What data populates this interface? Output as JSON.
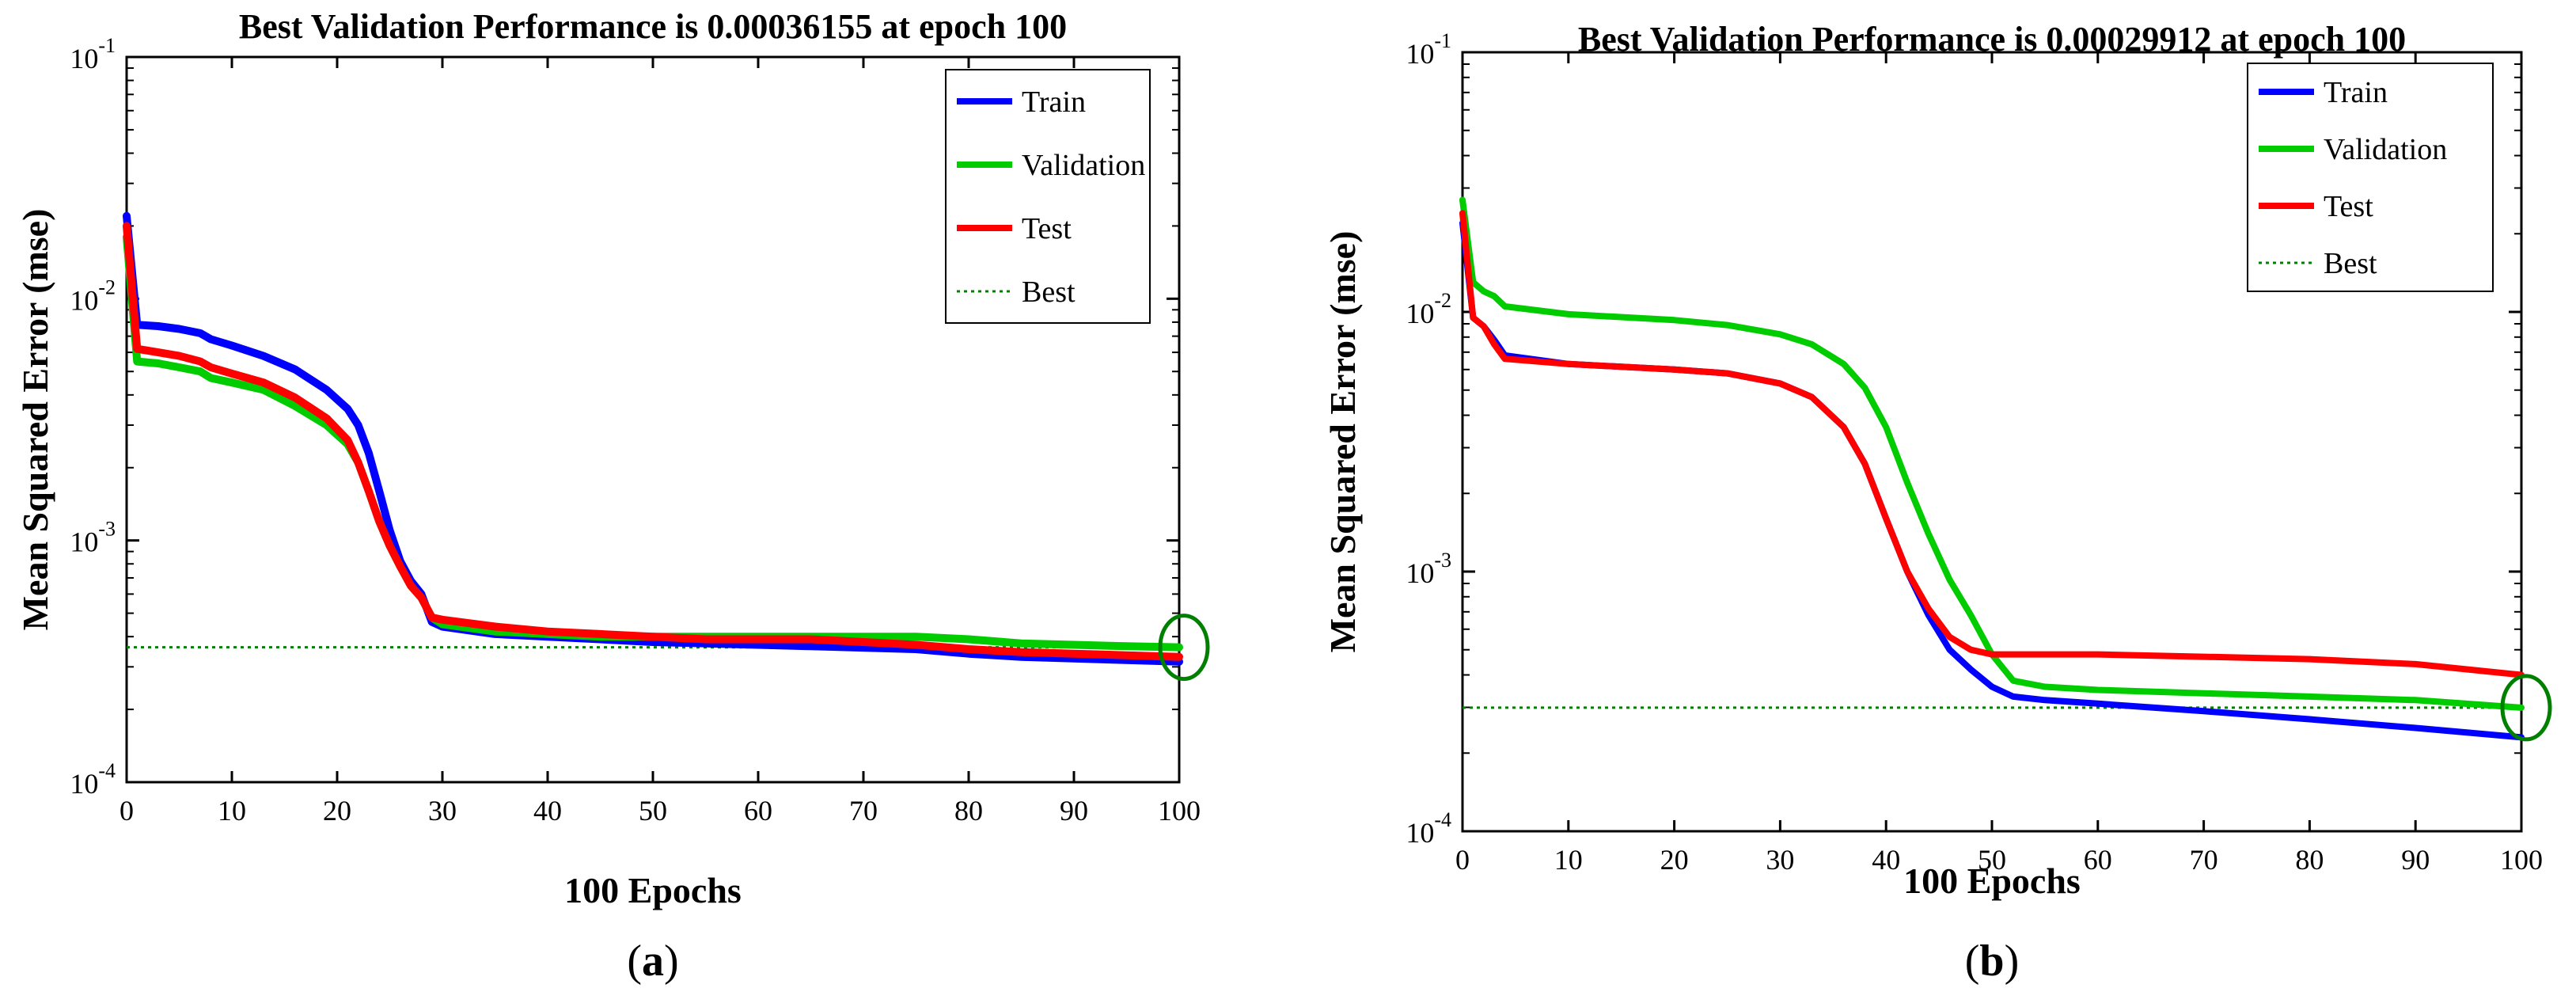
{
  "colors": {
    "train": "#0000ff",
    "validation": "#00cc00",
    "test": "#ff0000",
    "best": "#008000",
    "axis": "#000000"
  },
  "chart_data": [
    {
      "type": "line",
      "panel_label_prefix": "(",
      "panel_label_letter": "a",
      "panel_label_suffix": ")",
      "title": "Best Validation Performance is 0.00036155 at epoch 100",
      "xlabel": "100 Epochs",
      "ylabel": "Mean Squared Error  (mse)",
      "xlim": [
        0,
        100
      ],
      "ylim_log10": [
        -4,
        -1
      ],
      "yscale": "log",
      "xticks": [
        "0",
        "10",
        "20",
        "30",
        "40",
        "50",
        "60",
        "70",
        "80",
        "90",
        "100"
      ],
      "yticks": [
        {
          "base": "10",
          "exp": "-4"
        },
        {
          "base": "10",
          "exp": "-3"
        },
        {
          "base": "10",
          "exp": "-2"
        },
        {
          "base": "10",
          "exp": "-1"
        }
      ],
      "legend_position": "top-right",
      "best": {
        "epoch": 100,
        "value": 0.00036155
      },
      "series": [
        {
          "name": "Train",
          "key": "train",
          "x": [
            0,
            1,
            3,
            5,
            7,
            8,
            10,
            13,
            16,
            19,
            21,
            22,
            23,
            24,
            25,
            26,
            27,
            28,
            29,
            30,
            35,
            40,
            45,
            50,
            55,
            60,
            65,
            70,
            75,
            80,
            85,
            90,
            95,
            100
          ],
          "y": [
            0.022,
            0.0078,
            0.0077,
            0.0075,
            0.0072,
            0.0068,
            0.0064,
            0.0058,
            0.0051,
            0.0042,
            0.0035,
            0.003,
            0.0023,
            0.0016,
            0.0011,
            0.00082,
            0.00068,
            0.0006,
            0.00046,
            0.00044,
            0.00041,
            0.0004,
            0.00039,
            0.00038,
            0.000375,
            0.00037,
            0.000365,
            0.00036,
            0.000355,
            0.00034,
            0.00033,
            0.000325,
            0.00032,
            0.000315
          ]
        },
        {
          "name": "Validation",
          "key": "validation",
          "x": [
            0,
            1,
            3,
            5,
            7,
            8,
            10,
            13,
            16,
            19,
            21,
            22,
            23,
            24,
            25,
            26,
            27,
            28,
            29,
            30,
            35,
            40,
            45,
            50,
            55,
            60,
            65,
            70,
            75,
            80,
            85,
            90,
            95,
            100
          ],
          "y": [
            0.018,
            0.0055,
            0.0054,
            0.0052,
            0.005,
            0.0047,
            0.0045,
            0.0042,
            0.0036,
            0.003,
            0.0025,
            0.0021,
            0.0016,
            0.0012,
            0.00095,
            0.00078,
            0.00065,
            0.00058,
            0.00048,
            0.00045,
            0.00042,
            0.00041,
            0.0004,
            0.0004,
            0.0004,
            0.0004,
            0.0004,
            0.0004,
            0.0004,
            0.00039,
            0.000375,
            0.00037,
            0.000365,
            0.00036155
          ]
        },
        {
          "name": "Test",
          "key": "test",
          "x": [
            0,
            1,
            3,
            5,
            7,
            8,
            10,
            13,
            16,
            19,
            21,
            22,
            23,
            24,
            25,
            26,
            27,
            28,
            29,
            30,
            35,
            40,
            45,
            50,
            55,
            60,
            65,
            70,
            75,
            80,
            85,
            90,
            95,
            100
          ],
          "y": [
            0.02,
            0.0062,
            0.006,
            0.0058,
            0.0055,
            0.0052,
            0.0049,
            0.0045,
            0.0039,
            0.0032,
            0.0026,
            0.0021,
            0.0016,
            0.0012,
            0.00095,
            0.00078,
            0.00065,
            0.00058,
            0.00048,
            0.00047,
            0.00044,
            0.00042,
            0.00041,
            0.0004,
            0.00039,
            0.00039,
            0.00039,
            0.00038,
            0.00037,
            0.000355,
            0.000345,
            0.00034,
            0.000335,
            0.00033
          ]
        }
      ]
    },
    {
      "type": "line",
      "panel_label_prefix": "(",
      "panel_label_letter": "b",
      "panel_label_suffix": ")",
      "title": "Best Validation Performance is 0.00029912 at epoch 100",
      "xlabel": "100 Epochs",
      "ylabel": "Mean Squared Error  (mse)",
      "xlim": [
        0,
        100
      ],
      "ylim_log10": [
        -4,
        -1
      ],
      "yscale": "log",
      "xticks": [
        "0",
        "10",
        "20",
        "30",
        "40",
        "50",
        "60",
        "70",
        "80",
        "90",
        "100"
      ],
      "yticks": [
        {
          "base": "10",
          "exp": "-4"
        },
        {
          "base": "10",
          "exp": "-3"
        },
        {
          "base": "10",
          "exp": "-2"
        },
        {
          "base": "10",
          "exp": "-1"
        }
      ],
      "legend_position": "top-right",
      "best": {
        "epoch": 100,
        "value": 0.00029912
      },
      "series": [
        {
          "name": "Train",
          "key": "train",
          "x": [
            0,
            1,
            2,
            3,
            4,
            10,
            20,
            25,
            30,
            33,
            36,
            38,
            40,
            42,
            44,
            46,
            48,
            50,
            52,
            55,
            60,
            70,
            80,
            90,
            100
          ],
          "y": [
            0.022,
            0.0095,
            0.0088,
            0.0078,
            0.0068,
            0.0063,
            0.006,
            0.0058,
            0.0053,
            0.0047,
            0.0036,
            0.0026,
            0.0016,
            0.001,
            0.00068,
            0.0005,
            0.00042,
            0.00036,
            0.00033,
            0.00032,
            0.00031,
            0.00029,
            0.00027,
            0.00025,
            0.00023
          ]
        },
        {
          "name": "Validation",
          "key": "validation",
          "x": [
            0,
            1,
            2,
            3,
            4,
            10,
            20,
            25,
            30,
            33,
            36,
            38,
            40,
            42,
            44,
            46,
            48,
            50,
            52,
            55,
            60,
            70,
            80,
            90,
            100
          ],
          "y": [
            0.027,
            0.013,
            0.012,
            0.0115,
            0.0105,
            0.0098,
            0.0093,
            0.0089,
            0.0082,
            0.0075,
            0.0063,
            0.0051,
            0.0036,
            0.0022,
            0.0014,
            0.00093,
            0.00068,
            0.00048,
            0.00038,
            0.00036,
            0.00035,
            0.00034,
            0.00033,
            0.00032,
            0.00029912
          ]
        },
        {
          "name": "Test",
          "key": "test",
          "x": [
            0,
            1,
            2,
            3,
            4,
            10,
            20,
            25,
            30,
            33,
            36,
            38,
            40,
            42,
            44,
            46,
            48,
            50,
            52,
            55,
            60,
            70,
            80,
            90,
            100
          ],
          "y": [
            0.024,
            0.0095,
            0.0088,
            0.0075,
            0.0066,
            0.0063,
            0.006,
            0.0058,
            0.0053,
            0.0047,
            0.0036,
            0.0026,
            0.0016,
            0.001,
            0.00072,
            0.00056,
            0.0005,
            0.00048,
            0.00048,
            0.00048,
            0.00048,
            0.00047,
            0.00046,
            0.00044,
            0.0004
          ]
        }
      ]
    }
  ]
}
